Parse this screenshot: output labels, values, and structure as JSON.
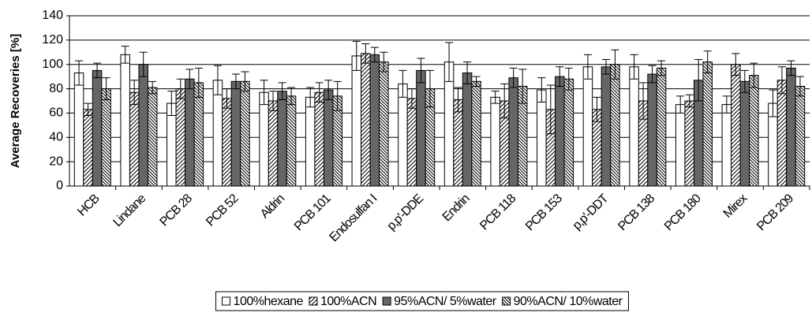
{
  "chart_data": {
    "type": "bar",
    "y_label": "Average Recoveries [%]",
    "categories": [
      "HCB",
      "Lindane",
      "PCB 28",
      "PCB 52",
      "Aldrin",
      "PCB 101",
      "Endosulfan I",
      "p,p'-DDE",
      "Endrin",
      "PCB 118",
      "PCB 153",
      "p,p'-DDT",
      "PCB 138",
      "PCB 180",
      "Mirex",
      "PCB 209"
    ],
    "series": [
      {
        "name": "100%hexane",
        "color": "#ffffff",
        "values": [
          93,
          108,
          68,
          87,
          77,
          73,
          107,
          84,
          102,
          73,
          79,
          98,
          98,
          67,
          67,
          68
        ],
        "errors": [
          10,
          7,
          10,
          12,
          10,
          8,
          12,
          11,
          16,
          5,
          10,
          10,
          10,
          7,
          7,
          11
        ]
      },
      {
        "name": "100%ACN",
        "color": "#ffffff",
        "hatch": "forward",
        "values": [
          63,
          77,
          80,
          72,
          70,
          77,
          109,
          72,
          71,
          70,
          63,
          63,
          70,
          70,
          100,
          87
        ],
        "errors": [
          5,
          10,
          8,
          8,
          8,
          8,
          8,
          8,
          10,
          14,
          20,
          10,
          15,
          5,
          9,
          11
        ]
      },
      {
        "name": "95%ACN/ 5%water",
        "color": "#666666",
        "values": [
          95,
          100,
          88,
          86,
          78,
          79,
          108,
          95,
          93,
          89,
          90,
          98,
          92,
          87,
          86,
          97
        ],
        "errors": [
          6,
          10,
          8,
          6,
          7,
          8,
          6,
          10,
          9,
          8,
          8,
          6,
          7,
          17,
          9,
          6
        ]
      },
      {
        "name": "90%ACN/ 10%water",
        "color": "#ffffff",
        "hatch": "backward",
        "values": [
          80,
          81,
          85,
          86,
          74,
          74,
          102,
          80,
          86,
          82,
          88,
          100,
          97,
          102,
          91,
          82
        ],
        "errors": [
          9,
          5,
          12,
          8,
          7,
          12,
          8,
          15,
          4,
          14,
          9,
          12,
          6,
          9,
          10,
          8
        ]
      }
    ],
    "ylim": [
      0,
      140
    ],
    "yticks": [
      0,
      20,
      40,
      60,
      80,
      100,
      120,
      140
    ],
    "grid": true
  }
}
